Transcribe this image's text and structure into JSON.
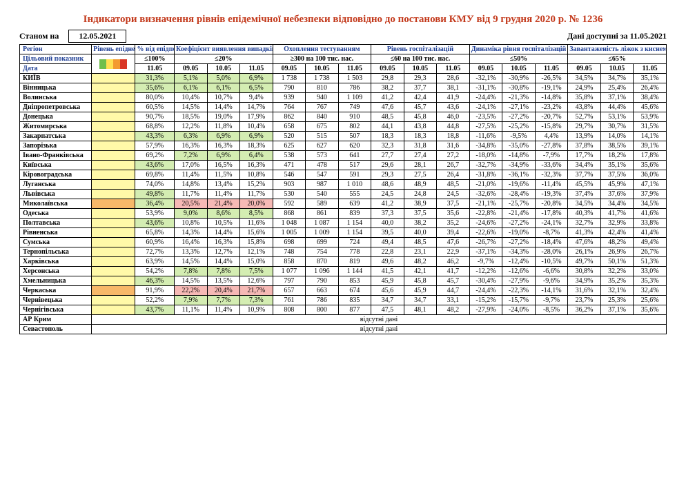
{
  "title": "Індикатори визначення рівнів епідемічної небезпеки відповідно до постанови КМУ від 9 грудня 2020 р. № 1236",
  "asof_label": "Станом на",
  "asof_date": "12.05.2021",
  "data_label": "Дані доступні за 11.05.2021",
  "colors": {
    "yellow": "#fff9a8",
    "palegreen": "#d4edb2",
    "orange": "#f7b869",
    "pink": "#f6b9b5",
    "white": "#ffffff"
  },
  "headers": {
    "region": "Регіон",
    "risk": "Рівень епіднебезпеки",
    "pct": "% від епідпорогу",
    "infect": "Коефіцієнт виявлення випадків інфікування",
    "test": "Охоплення тестуванням",
    "hosp": "Рівень госпіталізацій",
    "dyn": "Динаміка рівня госпіталізацій",
    "beds": "Завантаженість ліжок з киснем",
    "target": "Цільовий показник",
    "date": "Дата",
    "t_pct": "≤100%",
    "t_infect": "≤20%",
    "t_test": "≥300 на 100 тис. нас.",
    "t_hosp": "≤60 на 100 тис. нас.",
    "t_dyn": "≤50%",
    "t_beds": "≤65%",
    "d_pct": "11.05",
    "d3": [
      "09.05",
      "10.05",
      "11.05"
    ]
  },
  "rows": [
    {
      "region": "КИЇВ",
      "risk_bg": "yellow",
      "pct": "31,3%",
      "pct_bg": "palegreen",
      "infect": [
        "5,1%",
        "5,0%",
        "6,9%"
      ],
      "infect_bg": [
        "palegreen",
        "palegreen",
        "palegreen"
      ],
      "test": [
        "1 738",
        "1 738",
        "1 503"
      ],
      "hosp": [
        "29,8",
        "29,3",
        "28,6"
      ],
      "dyn": [
        "-32,1%",
        "-30,9%",
        "-26,5%"
      ],
      "beds": [
        "34,5%",
        "34,7%",
        "35,1%"
      ]
    },
    {
      "region": "Вінницька",
      "risk_bg": "yellow",
      "pct": "35,6%",
      "pct_bg": "palegreen",
      "infect": [
        "6,1%",
        "6,1%",
        "6,5%"
      ],
      "infect_bg": [
        "palegreen",
        "palegreen",
        "palegreen"
      ],
      "test": [
        "790",
        "810",
        "786"
      ],
      "hosp": [
        "38,2",
        "37,7",
        "38,1"
      ],
      "dyn": [
        "-31,1%",
        "-30,8%",
        "-19,1%"
      ],
      "beds": [
        "24,9%",
        "25,4%",
        "26,4%"
      ]
    },
    {
      "region": "Волинська",
      "risk_bg": "yellow",
      "pct": "80,0%",
      "pct_bg": "white",
      "infect": [
        "10,4%",
        "10,7%",
        "9,4%"
      ],
      "infect_bg": [
        "white",
        "white",
        "white"
      ],
      "test": [
        "939",
        "940",
        "1 109"
      ],
      "hosp": [
        "41,2",
        "42,4",
        "41,9"
      ],
      "dyn": [
        "-24,4%",
        "-21,3%",
        "-14,8%"
      ],
      "beds": [
        "35,8%",
        "37,1%",
        "38,4%"
      ]
    },
    {
      "region": "Дніпропетровська",
      "risk_bg": "yellow",
      "pct": "60,5%",
      "pct_bg": "white",
      "infect": [
        "14,5%",
        "14,4%",
        "14,7%"
      ],
      "infect_bg": [
        "white",
        "white",
        "white"
      ],
      "test": [
        "764",
        "767",
        "749"
      ],
      "hosp": [
        "47,6",
        "45,7",
        "43,6"
      ],
      "dyn": [
        "-24,1%",
        "-27,1%",
        "-23,2%"
      ],
      "beds": [
        "43,8%",
        "44,4%",
        "45,6%"
      ]
    },
    {
      "region": "Донецька",
      "risk_bg": "yellow",
      "pct": "90,7%",
      "pct_bg": "white",
      "infect": [
        "18,5%",
        "19,0%",
        "17,9%"
      ],
      "infect_bg": [
        "white",
        "white",
        "white"
      ],
      "test": [
        "862",
        "840",
        "910"
      ],
      "hosp": [
        "48,5",
        "45,8",
        "46,0"
      ],
      "dyn": [
        "-23,5%",
        "-27,2%",
        "-20,7%"
      ],
      "beds": [
        "52,7%",
        "53,1%",
        "53,9%"
      ]
    },
    {
      "region": "Житомирська",
      "risk_bg": "yellow",
      "pct": "68,8%",
      "pct_bg": "white",
      "infect": [
        "12,2%",
        "11,8%",
        "10,4%"
      ],
      "infect_bg": [
        "white",
        "white",
        "white"
      ],
      "test": [
        "658",
        "675",
        "802"
      ],
      "hosp": [
        "44,1",
        "43,8",
        "44,8"
      ],
      "dyn": [
        "-27,5%",
        "-25,2%",
        "-15,8%"
      ],
      "beds": [
        "29,7%",
        "30,7%",
        "31,5%"
      ]
    },
    {
      "region": "Закарпатська",
      "risk_bg": "yellow",
      "pct": "43,3%",
      "pct_bg": "palegreen",
      "infect": [
        "6,3%",
        "6,9%",
        "6,9%"
      ],
      "infect_bg": [
        "palegreen",
        "palegreen",
        "palegreen"
      ],
      "test": [
        "520",
        "515",
        "507"
      ],
      "hosp": [
        "18,3",
        "18,3",
        "18,8"
      ],
      "dyn": [
        "-11,6%",
        "-9,5%",
        "4,4%"
      ],
      "beds": [
        "13,9%",
        "14,0%",
        "14,1%"
      ]
    },
    {
      "region": "Запорізька",
      "risk_bg": "yellow",
      "pct": "57,9%",
      "pct_bg": "white",
      "infect": [
        "16,3%",
        "16,3%",
        "18,3%"
      ],
      "infect_bg": [
        "white",
        "white",
        "white"
      ],
      "test": [
        "625",
        "627",
        "620"
      ],
      "hosp": [
        "32,3",
        "31,8",
        "31,6"
      ],
      "dyn": [
        "-34,8%",
        "-35,0%",
        "-27,8%"
      ],
      "beds": [
        "37,8%",
        "38,5%",
        "39,1%"
      ]
    },
    {
      "region": "Івано-Франківська",
      "risk_bg": "yellow",
      "pct": "69,2%",
      "pct_bg": "white",
      "infect": [
        "7,2%",
        "6,9%",
        "6,4%"
      ],
      "infect_bg": [
        "palegreen",
        "palegreen",
        "palegreen"
      ],
      "test": [
        "538",
        "573",
        "641"
      ],
      "hosp": [
        "27,7",
        "27,4",
        "27,2"
      ],
      "dyn": [
        "-18,0%",
        "-14,8%",
        "-7,9%"
      ],
      "beds": [
        "17,7%",
        "18,2%",
        "17,8%"
      ]
    },
    {
      "region": "Київська",
      "risk_bg": "yellow",
      "pct": "43,6%",
      "pct_bg": "palegreen",
      "infect": [
        "17,0%",
        "16,5%",
        "16,3%"
      ],
      "infect_bg": [
        "white",
        "white",
        "white"
      ],
      "test": [
        "471",
        "478",
        "517"
      ],
      "hosp": [
        "29,6",
        "28,1",
        "26,7"
      ],
      "dyn": [
        "-32,7%",
        "-34,9%",
        "-33,6%"
      ],
      "beds": [
        "34,4%",
        "35,1%",
        "35,6%"
      ]
    },
    {
      "region": "Кіровоградська",
      "risk_bg": "yellow",
      "pct": "69,8%",
      "pct_bg": "white",
      "infect": [
        "11,4%",
        "11,5%",
        "10,8%"
      ],
      "infect_bg": [
        "white",
        "white",
        "white"
      ],
      "test": [
        "546",
        "547",
        "591"
      ],
      "hosp": [
        "29,3",
        "27,5",
        "26,4"
      ],
      "dyn": [
        "-31,8%",
        "-36,1%",
        "-32,3%"
      ],
      "beds": [
        "37,7%",
        "37,5%",
        "36,0%"
      ]
    },
    {
      "region": "Луганська",
      "risk_bg": "yellow",
      "pct": "74,0%",
      "pct_bg": "white",
      "infect": [
        "14,8%",
        "13,4%",
        "15,2%"
      ],
      "infect_bg": [
        "white",
        "white",
        "white"
      ],
      "test": [
        "903",
        "987",
        "1 010"
      ],
      "hosp": [
        "48,6",
        "48,9",
        "48,5"
      ],
      "dyn": [
        "-21,0%",
        "-19,6%",
        "-11,4%"
      ],
      "beds": [
        "45,5%",
        "45,9%",
        "47,1%"
      ]
    },
    {
      "region": "Львівська",
      "risk_bg": "yellow",
      "pct": "49,8%",
      "pct_bg": "palegreen",
      "infect": [
        "11,7%",
        "11,4%",
        "11,7%"
      ],
      "infect_bg": [
        "white",
        "white",
        "white"
      ],
      "test": [
        "530",
        "540",
        "555"
      ],
      "hosp": [
        "24,5",
        "24,8",
        "24,5"
      ],
      "dyn": [
        "-32,6%",
        "-28,4%",
        "-19,3%"
      ],
      "beds": [
        "37,4%",
        "37,6%",
        "37,9%"
      ]
    },
    {
      "region": "Миколаївська",
      "risk_bg": "orange",
      "pct": "36,4%",
      "pct_bg": "palegreen",
      "infect": [
        "20,5%",
        "21,4%",
        "20,0%"
      ],
      "infect_bg": [
        "pink",
        "pink",
        "pink"
      ],
      "test": [
        "592",
        "589",
        "639"
      ],
      "hosp": [
        "41,2",
        "38,9",
        "37,5"
      ],
      "dyn": [
        "-21,1%",
        "-25,7%",
        "-20,8%"
      ],
      "beds": [
        "34,5%",
        "34,4%",
        "34,5%"
      ]
    },
    {
      "region": "Одеська",
      "risk_bg": "yellow",
      "pct": "53,9%",
      "pct_bg": "white",
      "infect": [
        "9,0%",
        "8,6%",
        "8,5%"
      ],
      "infect_bg": [
        "palegreen",
        "palegreen",
        "palegreen"
      ],
      "test": [
        "868",
        "861",
        "839"
      ],
      "hosp": [
        "37,3",
        "37,5",
        "35,6"
      ],
      "dyn": [
        "-22,8%",
        "-21,4%",
        "-17,8%"
      ],
      "beds": [
        "40,3%",
        "41,7%",
        "41,6%"
      ]
    },
    {
      "region": "Полтавська",
      "risk_bg": "yellow",
      "pct": "43,6%",
      "pct_bg": "palegreen",
      "infect": [
        "10,8%",
        "10,5%",
        "11,6%"
      ],
      "infect_bg": [
        "white",
        "white",
        "white"
      ],
      "test": [
        "1 048",
        "1 087",
        "1 154"
      ],
      "hosp": [
        "40,0",
        "38,2",
        "35,2"
      ],
      "dyn": [
        "-24,6%",
        "-27,2%",
        "-24,1%"
      ],
      "beds": [
        "32,7%",
        "32,9%",
        "33,8%"
      ]
    },
    {
      "region": "Рівненська",
      "risk_bg": "yellow",
      "pct": "65,8%",
      "pct_bg": "white",
      "infect": [
        "14,3%",
        "14,4%",
        "15,6%"
      ],
      "infect_bg": [
        "white",
        "white",
        "white"
      ],
      "test": [
        "1 005",
        "1 009",
        "1 154"
      ],
      "hosp": [
        "39,5",
        "40,0",
        "39,4"
      ],
      "dyn": [
        "-22,6%",
        "-19,0%",
        "-8,7%"
      ],
      "beds": [
        "41,3%",
        "42,4%",
        "41,4%"
      ]
    },
    {
      "region": "Сумська",
      "risk_bg": "yellow",
      "pct": "60,9%",
      "pct_bg": "white",
      "infect": [
        "16,4%",
        "16,3%",
        "15,8%"
      ],
      "infect_bg": [
        "white",
        "white",
        "white"
      ],
      "test": [
        "698",
        "699",
        "724"
      ],
      "hosp": [
        "49,4",
        "48,5",
        "47,6"
      ],
      "dyn": [
        "-26,7%",
        "-27,2%",
        "-18,4%"
      ],
      "beds": [
        "47,6%",
        "48,2%",
        "49,4%"
      ]
    },
    {
      "region": "Тернопільська",
      "risk_bg": "yellow",
      "pct": "72,7%",
      "pct_bg": "white",
      "infect": [
        "13,3%",
        "12,7%",
        "12,1%"
      ],
      "infect_bg": [
        "white",
        "white",
        "white"
      ],
      "test": [
        "748",
        "754",
        "778"
      ],
      "hosp": [
        "22,8",
        "23,1",
        "22,9"
      ],
      "dyn": [
        "-37,1%",
        "-34,3%",
        "-28,0%"
      ],
      "beds": [
        "26,1%",
        "26,9%",
        "26,7%"
      ]
    },
    {
      "region": "Харківська",
      "risk_bg": "yellow",
      "pct": "63,9%",
      "pct_bg": "white",
      "infect": [
        "14,5%",
        "14,4%",
        "15,0%"
      ],
      "infect_bg": [
        "white",
        "white",
        "white"
      ],
      "test": [
        "858",
        "870",
        "819"
      ],
      "hosp": [
        "49,6",
        "48,2",
        "46,2"
      ],
      "dyn": [
        "-9,7%",
        "-12,4%",
        "-10,5%"
      ],
      "beds": [
        "49,7%",
        "50,1%",
        "51,3%"
      ]
    },
    {
      "region": "Херсонська",
      "risk_bg": "yellow",
      "pct": "54,2%",
      "pct_bg": "white",
      "infect": [
        "7,8%",
        "7,8%",
        "7,5%"
      ],
      "infect_bg": [
        "palegreen",
        "palegreen",
        "palegreen"
      ],
      "test": [
        "1 077",
        "1 096",
        "1 144"
      ],
      "hosp": [
        "41,5",
        "42,1",
        "41,7"
      ],
      "dyn": [
        "-12,2%",
        "-12,6%",
        "-6,6%"
      ],
      "beds": [
        "30,8%",
        "32,2%",
        "33,0%"
      ]
    },
    {
      "region": "Хмельницька",
      "risk_bg": "yellow",
      "pct": "46,3%",
      "pct_bg": "palegreen",
      "infect": [
        "14,5%",
        "13,5%",
        "12,6%"
      ],
      "infect_bg": [
        "white",
        "white",
        "white"
      ],
      "test": [
        "797",
        "790",
        "853"
      ],
      "hosp": [
        "45,9",
        "45,8",
        "45,7"
      ],
      "dyn": [
        "-30,4%",
        "-27,9%",
        "-9,6%"
      ],
      "beds": [
        "34,9%",
        "35,2%",
        "35,3%"
      ]
    },
    {
      "region": "Черкаська",
      "risk_bg": "orange",
      "pct": "91,9%",
      "pct_bg": "white",
      "infect": [
        "22,2%",
        "20,4%",
        "21,7%"
      ],
      "infect_bg": [
        "pink",
        "pink",
        "pink"
      ],
      "test": [
        "657",
        "663",
        "674"
      ],
      "hosp": [
        "45,6",
        "45,9",
        "44,7"
      ],
      "dyn": [
        "-24,4%",
        "-22,3%",
        "-14,1%"
      ],
      "beds": [
        "31,6%",
        "32,1%",
        "32,4%"
      ]
    },
    {
      "region": "Чернівецька",
      "risk_bg": "yellow",
      "pct": "52,2%",
      "pct_bg": "white",
      "infect": [
        "7,9%",
        "7,7%",
        "7,3%"
      ],
      "infect_bg": [
        "palegreen",
        "palegreen",
        "palegreen"
      ],
      "test": [
        "761",
        "786",
        "835"
      ],
      "hosp": [
        "34,7",
        "34,7",
        "33,1"
      ],
      "dyn": [
        "-15,2%",
        "-15,7%",
        "-9,7%"
      ],
      "beds": [
        "23,7%",
        "25,3%",
        "25,6%"
      ]
    },
    {
      "region": "Чернігівська",
      "risk_bg": "yellow",
      "pct": "43,7%",
      "pct_bg": "palegreen",
      "infect": [
        "11,1%",
        "11,4%",
        "10,9%"
      ],
      "infect_bg": [
        "white",
        "white",
        "white"
      ],
      "test": [
        "808",
        "800",
        "877"
      ],
      "hosp": [
        "47,5",
        "48,1",
        "48,2"
      ],
      "dyn": [
        "-27,9%",
        "-24,0%",
        "-8,5%"
      ],
      "beds": [
        "36,2%",
        "37,1%",
        "35,6%"
      ]
    }
  ],
  "nodata_rows": [
    {
      "region": "АР Крим",
      "text": "відсутні дані"
    },
    {
      "region": "Севастополь",
      "text": "відсутні дані"
    }
  ]
}
